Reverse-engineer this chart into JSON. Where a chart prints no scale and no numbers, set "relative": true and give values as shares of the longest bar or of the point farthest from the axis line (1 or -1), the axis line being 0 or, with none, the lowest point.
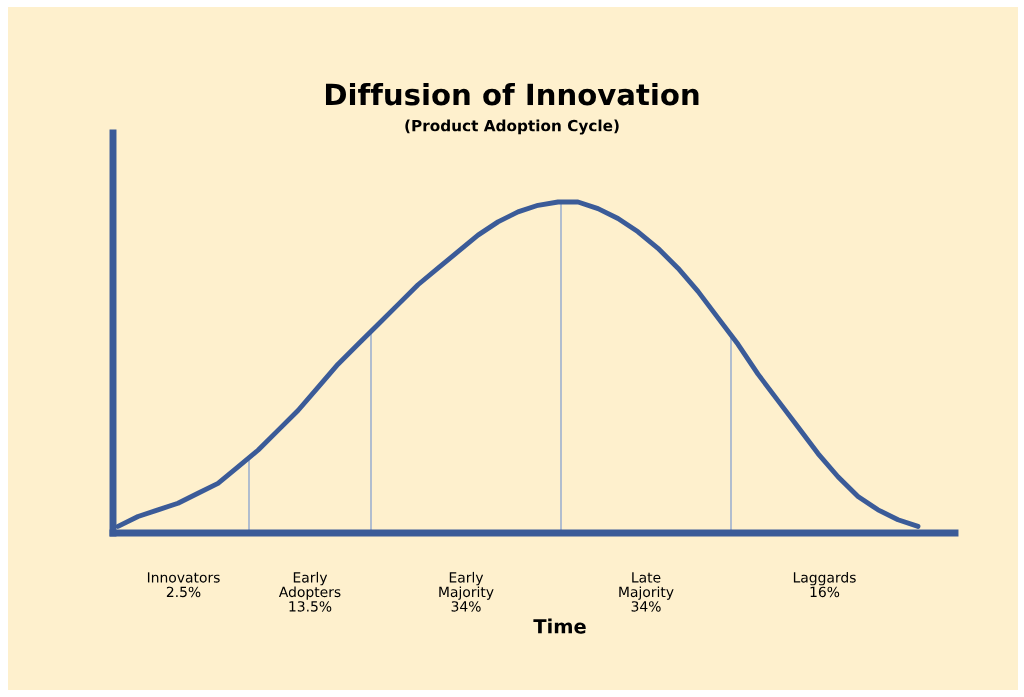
{
  "chart_data": {
    "type": "line",
    "title": "Diffusion of Innovation",
    "subtitle": "(Product Adoption Cycle)",
    "xlabel": "Time",
    "relative": true,
    "grid": false,
    "legend": false,
    "categories": [
      null,
      null,
      null,
      null,
      null,
      null,
      null,
      null,
      null,
      null,
      null,
      null,
      null,
      null,
      null,
      null,
      null,
      null,
      null,
      null,
      null,
      null,
      null,
      null,
      null,
      null,
      null,
      null,
      null,
      null,
      null,
      null,
      null,
      null,
      null,
      null,
      null,
      null,
      null,
      null,
      null
    ],
    "series": [
      {
        "color": "#3b5b98",
        "values": [
          0.02,
          0.05,
          0.07,
          0.09,
          0.12,
          0.15,
          0.2,
          0.25,
          0.31,
          0.37,
          0.44,
          0.51,
          0.57,
          0.63,
          0.69,
          0.75,
          0.8,
          0.85,
          0.9,
          0.94,
          0.97,
          0.99,
          1.0,
          1.0,
          0.98,
          0.95,
          0.91,
          0.86,
          0.8,
          0.73,
          0.65,
          0.57,
          0.48,
          0.4,
          0.32,
          0.24,
          0.17,
          0.11,
          0.07,
          0.04,
          0.02
        ]
      }
    ],
    "annotations": [
      "Innovators\n2.5%",
      "Early\nAdopters\n13.5%",
      "Early\nMajority\n34%",
      "Late\nMajority\n34%",
      "Laggards\n16%"
    ]
  }
}
